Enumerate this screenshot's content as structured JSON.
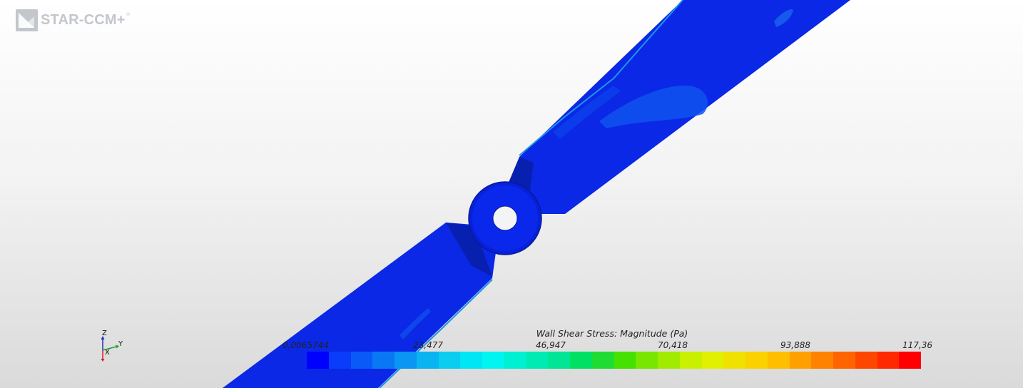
{
  "app": {
    "logo_text": "STAR-CCM+",
    "logo_registered": "®"
  },
  "axes_triad": {
    "z_label": "Z",
    "y_label": "Y",
    "x_label": "X"
  },
  "legend": {
    "title": "Wall Shear Stress: Magnitude (Pa)",
    "ticks": [
      "0,0065744",
      "23,477",
      "46,947",
      "70,418",
      "93,888",
      "117,36"
    ],
    "colors": [
      "#0000ff",
      "#0a3cfa",
      "#0a5af8",
      "#0a78f5",
      "#0a96f2",
      "#0ab4f0",
      "#0acdf0",
      "#00e6f5",
      "#00f5f0",
      "#00f0d2",
      "#00ebb4",
      "#00e696",
      "#00e164",
      "#1edc32",
      "#46e100",
      "#78e600",
      "#a0eb00",
      "#c8f000",
      "#e1f000",
      "#f0e100",
      "#fad200",
      "#ffbe00",
      "#ffa000",
      "#ff8200",
      "#ff6400",
      "#ff4600",
      "#ff2800",
      "#ff0000"
    ]
  },
  "scene": {
    "object": "propeller",
    "blade_color": "#0a28e6",
    "blade_shade_color": "#0820b0",
    "highlight_color": "#0f52ee",
    "edge_color": "#1e96e6"
  }
}
